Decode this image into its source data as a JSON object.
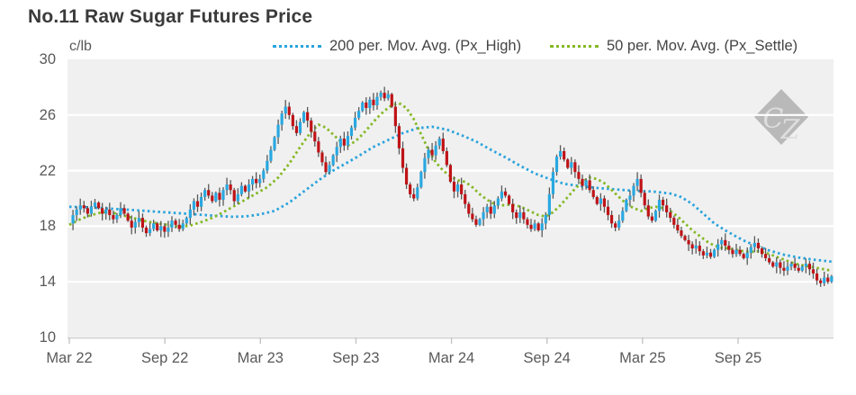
{
  "chart": {
    "title": "No.11 Raw Sugar Futures Price",
    "unit_label": "c/lb",
    "watermark": "CZ",
    "legend": [
      {
        "label": "200 per. Mov. Avg. (Px_High)",
        "color": "#29a3dc"
      },
      {
        "label": "50 per. Mov. Avg. (Px_Settle)",
        "color": "#84b823"
      }
    ]
  },
  "chart_data": {
    "type": "candlestick",
    "title": "No.11 Raw Sugar Futures Price",
    "ylabel": "c/lb",
    "x_axis": {
      "tick_labels": [
        "Mar 22",
        "Sep 22",
        "Mar 23",
        "Sep 23",
        "Mar 24",
        "Sep 24",
        "Mar 25",
        "Sep 25"
      ],
      "interval": "weekly"
    },
    "y_axis": {
      "tick_values": [
        30,
        26,
        22,
        18,
        14,
        10
      ],
      "range": [
        10,
        30
      ],
      "unit": "c/lb"
    },
    "grid": "horizontal-white-on-gray",
    "legend_position": "top-right",
    "price_weekly": [
      18.2,
      18.8,
      19.2,
      19.5,
      19.3,
      18.9,
      19.4,
      19.7,
      19.3,
      18.9,
      19.2,
      18.8,
      18.5,
      18.8,
      19.3,
      18.9,
      18.4,
      17.9,
      18.3,
      18.6,
      17.9,
      17.5,
      17.8,
      18.2,
      17.7,
      18.0,
      17.6,
      17.9,
      18.4,
      18.1,
      17.8,
      18.2,
      18.6,
      19.2,
      19.8,
      19.4,
      20.1,
      20.6,
      20.2,
      19.8,
      20.4,
      19.9,
      20.6,
      21.0,
      20.6,
      19.8,
      20.3,
      20.9,
      20.5,
      21.0,
      21.4,
      21.1,
      21.4,
      22.0,
      22.7,
      23.5,
      24.4,
      25.3,
      26.1,
      26.6,
      26.0,
      25.2,
      24.7,
      25.5,
      26.2,
      25.6,
      24.8,
      24.1,
      23.3,
      22.6,
      21.9,
      22.4,
      23.1,
      23.7,
      24.3,
      23.8,
      24.5,
      25.1,
      25.8,
      26.3,
      26.9,
      26.5,
      27.1,
      26.7,
      27.3,
      27.6,
      27.2,
      27.5,
      26.6,
      25.2,
      23.6,
      22.2,
      21.0,
      20.3,
      20.0,
      20.8,
      21.9,
      22.9,
      23.5,
      23.1,
      23.8,
      24.3,
      23.4,
      22.4,
      21.2,
      20.5,
      21.0,
      20.3,
      19.6,
      18.9,
      18.5,
      18.1,
      18.5,
      19.0,
      19.4,
      18.9,
      19.5,
      20.0,
      20.5,
      20.2,
      19.6,
      19.0,
      18.6,
      19.0,
      18.5,
      18.1,
      17.8,
      18.2,
      17.7,
      18.2,
      18.8,
      20.3,
      21.9,
      23.0,
      23.4,
      22.8,
      22.2,
      22.6,
      21.9,
      21.4,
      20.9,
      21.3,
      20.6,
      20.1,
      19.6,
      20.0,
      19.4,
      18.8,
      18.2,
      17.9,
      18.4,
      19.1,
      19.9,
      20.2,
      20.9,
      21.4,
      20.4,
      19.5,
      18.7,
      18.4,
      19.1,
      19.9,
      19.5,
      19.0,
      18.6,
      18.1,
      17.7,
      17.3,
      17.0,
      16.7,
      16.4,
      16.6,
      16.2,
      15.9,
      16.1,
      15.8,
      16.3,
      16.7,
      17.0,
      16.6,
      16.3,
      16.0,
      16.3,
      16.0,
      15.7,
      16.1,
      16.5,
      16.8,
      16.4,
      16.0,
      15.7,
      15.4,
      15.1,
      15.4,
      15.0,
      14.8,
      15.1,
      15.3,
      15.0,
      14.8,
      15.1,
      15.3,
      14.9,
      14.6,
      14.1,
      13.9,
      14.3,
      14.0,
      14.4
    ],
    "series": [
      {
        "name": "200 per. Mov. Avg. (Px_High)",
        "type": "dotted-line",
        "points": [
          [
            0,
            19.4
          ],
          [
            6,
            19.35
          ],
          [
            12,
            19.25
          ],
          [
            18,
            19.15
          ],
          [
            26,
            19.0
          ],
          [
            32,
            18.9
          ],
          [
            38,
            18.78
          ],
          [
            44,
            18.68
          ],
          [
            48,
            18.7
          ],
          [
            52,
            18.85
          ],
          [
            56,
            19.1
          ],
          [
            60,
            19.7
          ],
          [
            64,
            20.5
          ],
          [
            68,
            21.3
          ],
          [
            72,
            22.0
          ],
          [
            78,
            22.9
          ],
          [
            83,
            23.7
          ],
          [
            87,
            24.2
          ],
          [
            91,
            24.7
          ],
          [
            95,
            25.05
          ],
          [
            99,
            25.15
          ],
          [
            103,
            24.95
          ],
          [
            107,
            24.55
          ],
          [
            111,
            24.1
          ],
          [
            115,
            23.5
          ],
          [
            119,
            22.95
          ],
          [
            123,
            22.35
          ],
          [
            127,
            21.8
          ],
          [
            131,
            21.4
          ],
          [
            135,
            21.05
          ],
          [
            139,
            20.9
          ],
          [
            144,
            20.75
          ],
          [
            149,
            20.65
          ],
          [
            154,
            20.55
          ],
          [
            159,
            20.5
          ],
          [
            164,
            20.35
          ],
          [
            167,
            20.1
          ],
          [
            170,
            19.6
          ],
          [
            173,
            18.9
          ],
          [
            176,
            18.2
          ],
          [
            179,
            17.7
          ],
          [
            182,
            17.25
          ],
          [
            185,
            16.85
          ],
          [
            188,
            16.55
          ],
          [
            191,
            16.25
          ],
          [
            195,
            15.95
          ],
          [
            199,
            15.75
          ],
          [
            203,
            15.6
          ],
          [
            208,
            15.45
          ]
        ]
      },
      {
        "name": "50 per. Mov. Avg. (Px_Settle)",
        "type": "dotted-line",
        "points": [
          [
            0,
            18.1
          ],
          [
            3,
            18.5
          ],
          [
            6,
            18.8
          ],
          [
            9,
            19.0
          ],
          [
            12,
            18.95
          ],
          [
            15,
            18.75
          ],
          [
            18,
            18.55
          ],
          [
            21,
            18.35
          ],
          [
            24,
            18.2
          ],
          [
            27,
            18.1
          ],
          [
            30,
            17.95
          ],
          [
            33,
            18.05
          ],
          [
            36,
            18.3
          ],
          [
            39,
            18.6
          ],
          [
            42,
            19.0
          ],
          [
            45,
            19.45
          ],
          [
            48,
            19.9
          ],
          [
            51,
            20.35
          ],
          [
            54,
            20.8
          ],
          [
            57,
            21.5
          ],
          [
            60,
            22.5
          ],
          [
            63,
            23.7
          ],
          [
            66,
            24.8
          ],
          [
            68,
            25.3
          ],
          [
            70,
            25.1
          ],
          [
            72,
            24.6
          ],
          [
            74,
            24.1
          ],
          [
            76,
            23.8
          ],
          [
            78,
            24.1
          ],
          [
            80,
            24.6
          ],
          [
            82,
            25.2
          ],
          [
            84,
            25.8
          ],
          [
            86,
            26.3
          ],
          [
            88,
            26.7
          ],
          [
            90,
            26.85
          ],
          [
            92,
            26.5
          ],
          [
            94,
            25.7
          ],
          [
            96,
            24.6
          ],
          [
            98,
            23.5
          ],
          [
            100,
            22.6
          ],
          [
            102,
            22.0
          ],
          [
            104,
            21.6
          ],
          [
            106,
            21.3
          ],
          [
            108,
            21.2
          ],
          [
            110,
            20.8
          ],
          [
            112,
            20.3
          ],
          [
            114,
            19.9
          ],
          [
            116,
            19.6
          ],
          [
            118,
            19.5
          ],
          [
            120,
            19.55
          ],
          [
            122,
            19.5
          ],
          [
            124,
            19.3
          ],
          [
            126,
            19.05
          ],
          [
            128,
            18.8
          ],
          [
            130,
            18.7
          ],
          [
            132,
            19.0
          ],
          [
            134,
            19.5
          ],
          [
            136,
            20.1
          ],
          [
            138,
            20.7
          ],
          [
            140,
            21.2
          ],
          [
            142,
            21.5
          ],
          [
            144,
            21.4
          ],
          [
            146,
            21.1
          ],
          [
            148,
            20.6
          ],
          [
            150,
            20.1
          ],
          [
            152,
            19.6
          ],
          [
            154,
            19.3
          ],
          [
            156,
            19.1
          ],
          [
            158,
            19.3
          ],
          [
            160,
            19.4
          ],
          [
            162,
            19.3
          ],
          [
            164,
            19.1
          ],
          [
            166,
            18.7
          ],
          [
            168,
            18.2
          ],
          [
            170,
            17.7
          ],
          [
            172,
            17.3
          ],
          [
            174,
            16.9
          ],
          [
            176,
            16.6
          ],
          [
            178,
            16.45
          ],
          [
            180,
            16.4
          ],
          [
            182,
            16.3
          ],
          [
            184,
            16.2
          ],
          [
            186,
            16.15
          ],
          [
            188,
            16.2
          ],
          [
            190,
            16.1
          ],
          [
            192,
            15.9
          ],
          [
            194,
            15.7
          ],
          [
            196,
            15.5
          ],
          [
            198,
            15.3
          ],
          [
            200,
            15.2
          ],
          [
            202,
            15.1
          ],
          [
            204,
            15.0
          ],
          [
            206,
            14.9
          ],
          [
            208,
            14.8
          ]
        ]
      }
    ],
    "colors": {
      "up": "#29a8e0",
      "down": "#bf1317",
      "wick": "#595959",
      "ma200": "#29a3dc",
      "ma50": "#84b823",
      "plot_bg": "#f0f0f0",
      "gridline": "#ffffff",
      "axis_line": "#d6d6d6",
      "tick": "#c4c4c4",
      "title_text": "#3a3a3a",
      "label_text": "#595959",
      "watermark_bg": "#b9b9b9",
      "watermark_text": "#dedede"
    }
  }
}
